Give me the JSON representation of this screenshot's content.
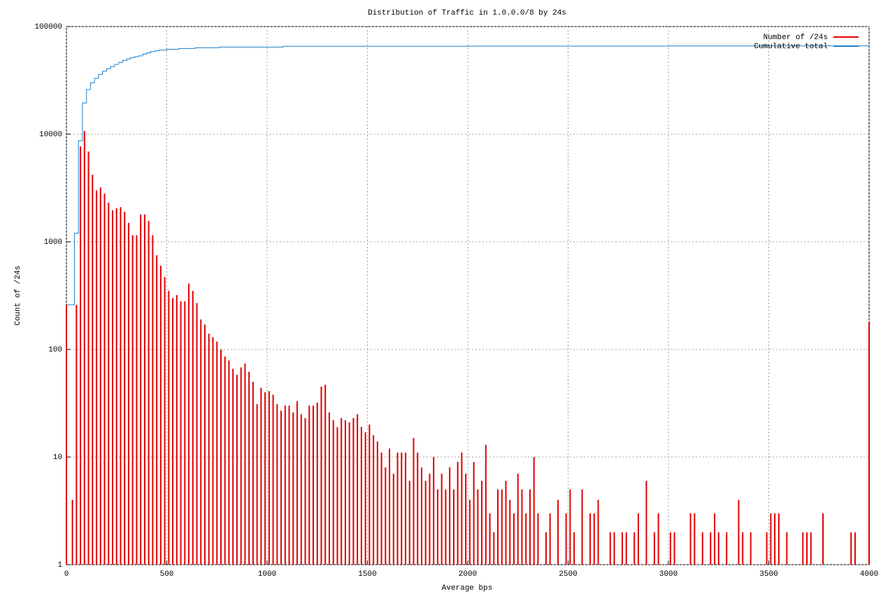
{
  "chart_data": {
    "type": "bar",
    "title": "Distribution of Traffic in 1.0.0.0/8 by 24s",
    "xlabel": "Average bps",
    "ylabel": "Count of /24s",
    "xlim": [
      0,
      4000
    ],
    "ylim": [
      1,
      100000
    ],
    "ylog": true,
    "grid": true,
    "legend": "upper right",
    "xticks": [
      0,
      500,
      1000,
      1500,
      2000,
      2500,
      3000,
      3500,
      4000
    ],
    "yticks": [
      1,
      10,
      100,
      1000,
      10000,
      100000
    ],
    "series": [
      {
        "name": "Number of /24s",
        "color": "#e00000",
        "type": "bar",
        "x": [
          0,
          30,
          50,
          70,
          90,
          110,
          130,
          150,
          170,
          190,
          210,
          230,
          250,
          270,
          290,
          310,
          330,
          350,
          370,
          390,
          410,
          430,
          450,
          470,
          490,
          510,
          530,
          550,
          570,
          590,
          610,
          630,
          650,
          670,
          690,
          710,
          730,
          750,
          770,
          790,
          810,
          830,
          850,
          870,
          890,
          910,
          930,
          950,
          970,
          990,
          1010,
          1030,
          1050,
          1070,
          1090,
          1110,
          1130,
          1150,
          1170,
          1190,
          1210,
          1230,
          1250,
          1270,
          1290,
          1310,
          1330,
          1350,
          1370,
          1390,
          1410,
          1430,
          1450,
          1470,
          1490,
          1510,
          1530,
          1550,
          1570,
          1590,
          1610,
          1630,
          1650,
          1670,
          1690,
          1710,
          1730,
          1750,
          1770,
          1790,
          1810,
          1830,
          1850,
          1870,
          1890,
          1910,
          1930,
          1950,
          1970,
          1990,
          2010,
          2030,
          2050,
          2070,
          2090,
          2110,
          2130,
          2150,
          2170,
          2190,
          2210,
          2230,
          2250,
          2270,
          2290,
          2310,
          2330,
          2350,
          2390,
          2410,
          2450,
          2490,
          2510,
          2530,
          2570,
          2610,
          2630,
          2650,
          2710,
          2730,
          2770,
          2790,
          2830,
          2850,
          2890,
          2930,
          2950,
          3010,
          3030,
          3110,
          3130,
          3170,
          3210,
          3230,
          3250,
          3290,
          3350,
          3370,
          3410,
          3490,
          3510,
          3530,
          3550,
          3590,
          3670,
          3690,
          3710,
          3770,
          3910,
          3930,
          4000
        ],
        "values": [
          260,
          4,
          260,
          7700,
          10700,
          6900,
          4200,
          3000,
          3200,
          2800,
          2300,
          1960,
          2050,
          2100,
          1900,
          1500,
          1150,
          1150,
          1800,
          1800,
          1560,
          1150,
          750,
          600,
          470,
          350,
          300,
          320,
          280,
          280,
          410,
          350,
          270,
          190,
          170,
          140,
          130,
          118,
          100,
          86,
          79,
          66,
          58,
          68,
          74,
          62,
          50,
          31,
          44,
          40,
          41,
          38,
          31,
          27,
          30,
          30,
          26,
          33,
          25,
          23,
          30,
          30,
          32,
          45,
          47,
          26,
          22,
          19,
          23,
          22,
          21,
          23,
          25,
          19,
          17,
          20,
          16,
          14,
          11,
          8,
          12,
          7,
          11,
          11,
          11,
          6,
          15,
          11,
          8,
          6,
          7,
          10,
          5,
          7,
          5,
          8,
          5,
          9,
          11,
          7,
          4,
          9,
          5,
          6,
          13,
          3,
          2,
          5,
          5,
          6,
          4,
          3,
          7,
          5,
          3,
          5,
          10,
          3,
          2,
          3,
          4,
          3,
          5,
          2,
          5,
          3,
          3,
          4,
          2,
          2,
          2,
          2,
          2,
          3,
          6,
          2,
          3,
          2,
          2,
          3,
          3,
          2,
          2,
          3,
          2,
          2,
          4,
          2,
          2,
          2,
          3,
          3,
          3,
          2,
          2,
          2,
          2,
          3,
          2,
          2,
          180
        ]
      },
      {
        "name": "Cumulative total",
        "color": "#1e7fc8",
        "type": "step",
        "x": [
          0,
          40,
          60,
          80,
          100,
          120,
          140,
          160,
          180,
          200,
          220,
          240,
          260,
          280,
          300,
          320,
          340,
          360,
          380,
          400,
          420,
          440,
          460,
          500,
          560,
          640,
          760,
          1080,
          2000,
          3000,
          3500,
          4000
        ],
        "values": [
          260,
          1200,
          8700,
          19500,
          26000,
          30000,
          33000,
          36000,
          38500,
          40500,
          42500,
          44500,
          46500,
          48500,
          50000,
          51500,
          52500,
          53500,
          55500,
          57000,
          58500,
          59500,
          60500,
          61500,
          62500,
          63500,
          64500,
          65500,
          65800,
          66000,
          66200,
          66400
        ]
      }
    ]
  }
}
